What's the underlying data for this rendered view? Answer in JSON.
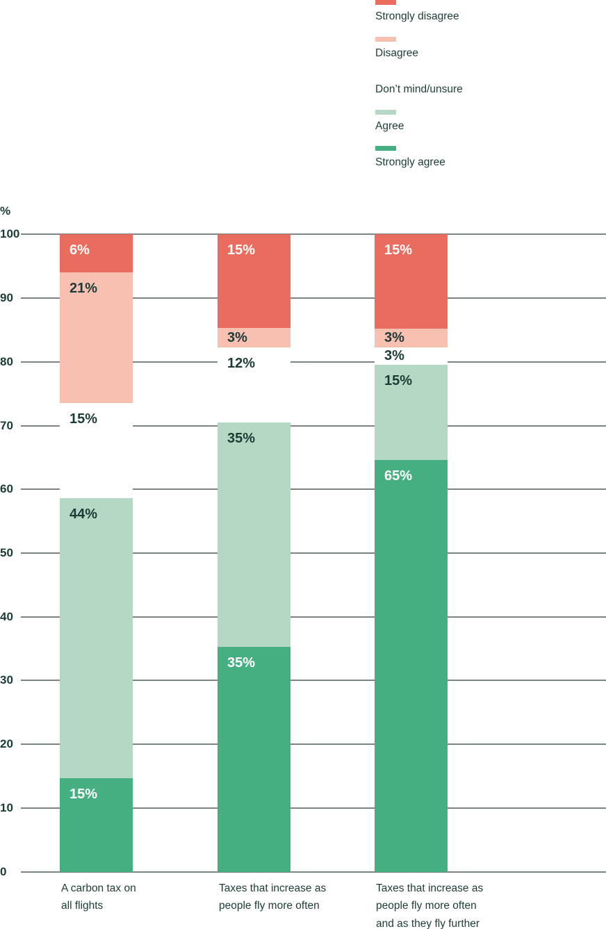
{
  "colors": {
    "strongly_disagree": "#E96C5E",
    "disagree": "#F7C0B1",
    "dont_mind_unsure": "#FFFFFF",
    "agree": "#B4D8C3",
    "strongly_agree": "#46AF82",
    "text_dark": "#1C3B37",
    "label_on_dark": "#FFFFFF",
    "gridline": "#7C8385",
    "background": "#FFFFFF"
  },
  "legend": {
    "items": [
      {
        "key": "strongly-disagree",
        "label": "Strongly disagree",
        "color": "#E96C5E"
      },
      {
        "key": "disagree",
        "label": "Disagree",
        "color": "#F7C0B1"
      },
      {
        "key": "dont-mind-unsure",
        "label": "Don’t mind/unsure",
        "color": "#FFFFFF"
      },
      {
        "key": "agree",
        "label": "Agree",
        "color": "#B4D8C3"
      },
      {
        "key": "strongly-agree",
        "label": "Strongly agree",
        "color": "#46AF82"
      }
    ]
  },
  "axis": {
    "unit_label": "%",
    "ticks": [
      0,
      10,
      20,
      30,
      40,
      50,
      60,
      70,
      80,
      90,
      100
    ]
  },
  "chart_data": {
    "type": "bar",
    "subtype": "stacked-percentage-column",
    "categories": [
      "A carbon tax on all flights",
      "Taxes that increase as people fly more often",
      "Taxes that increase as people fly more often and as they fly further"
    ],
    "categories_lines": [
      [
        "A carbon tax on",
        "all flights"
      ],
      [
        "Taxes that increase as",
        "people fly more often"
      ],
      [
        "Taxes that increase as",
        "people fly more often",
        "and as they fly further"
      ]
    ],
    "series": [
      {
        "name": "Strongly disagree",
        "key": "strongly-disagree",
        "values": [
          6,
          15,
          15
        ],
        "display_values": [
          6.0,
          14.7,
          14.8
        ],
        "color": "#E96C5E",
        "label_color": "#FFFFFF"
      },
      {
        "name": "Disagree",
        "key": "disagree",
        "values": [
          21,
          3,
          3
        ],
        "display_values": [
          20.5,
          3.0,
          2.9
        ],
        "color": "#F7C0B1",
        "label_color": "#1C3B37"
      },
      {
        "name": "Don’t mind/unsure",
        "key": "dont-mind-unsure",
        "values": [
          15,
          12,
          3
        ],
        "display_values": [
          14.9,
          11.8,
          2.8
        ],
        "color": "#FFFFFF",
        "label_color": "#1C3B37"
      },
      {
        "name": "Agree",
        "key": "agree",
        "values": [
          44,
          35,
          15
        ],
        "display_values": [
          43.9,
          35.2,
          14.9
        ],
        "color": "#B4D8C3",
        "label_color": "#1C3B37"
      },
      {
        "name": "Strongly agree",
        "key": "strongly-agree",
        "values": [
          15,
          35,
          65
        ],
        "display_values": [
          14.7,
          35.3,
          64.6
        ],
        "color": "#46AF82",
        "label_color": "#FFFFFF"
      }
    ],
    "value_suffix": "%",
    "ylabel": "%",
    "ylim": [
      0,
      100
    ],
    "grid": true,
    "grid_interrupted_by_bars": true,
    "legend_position": "top-right"
  }
}
